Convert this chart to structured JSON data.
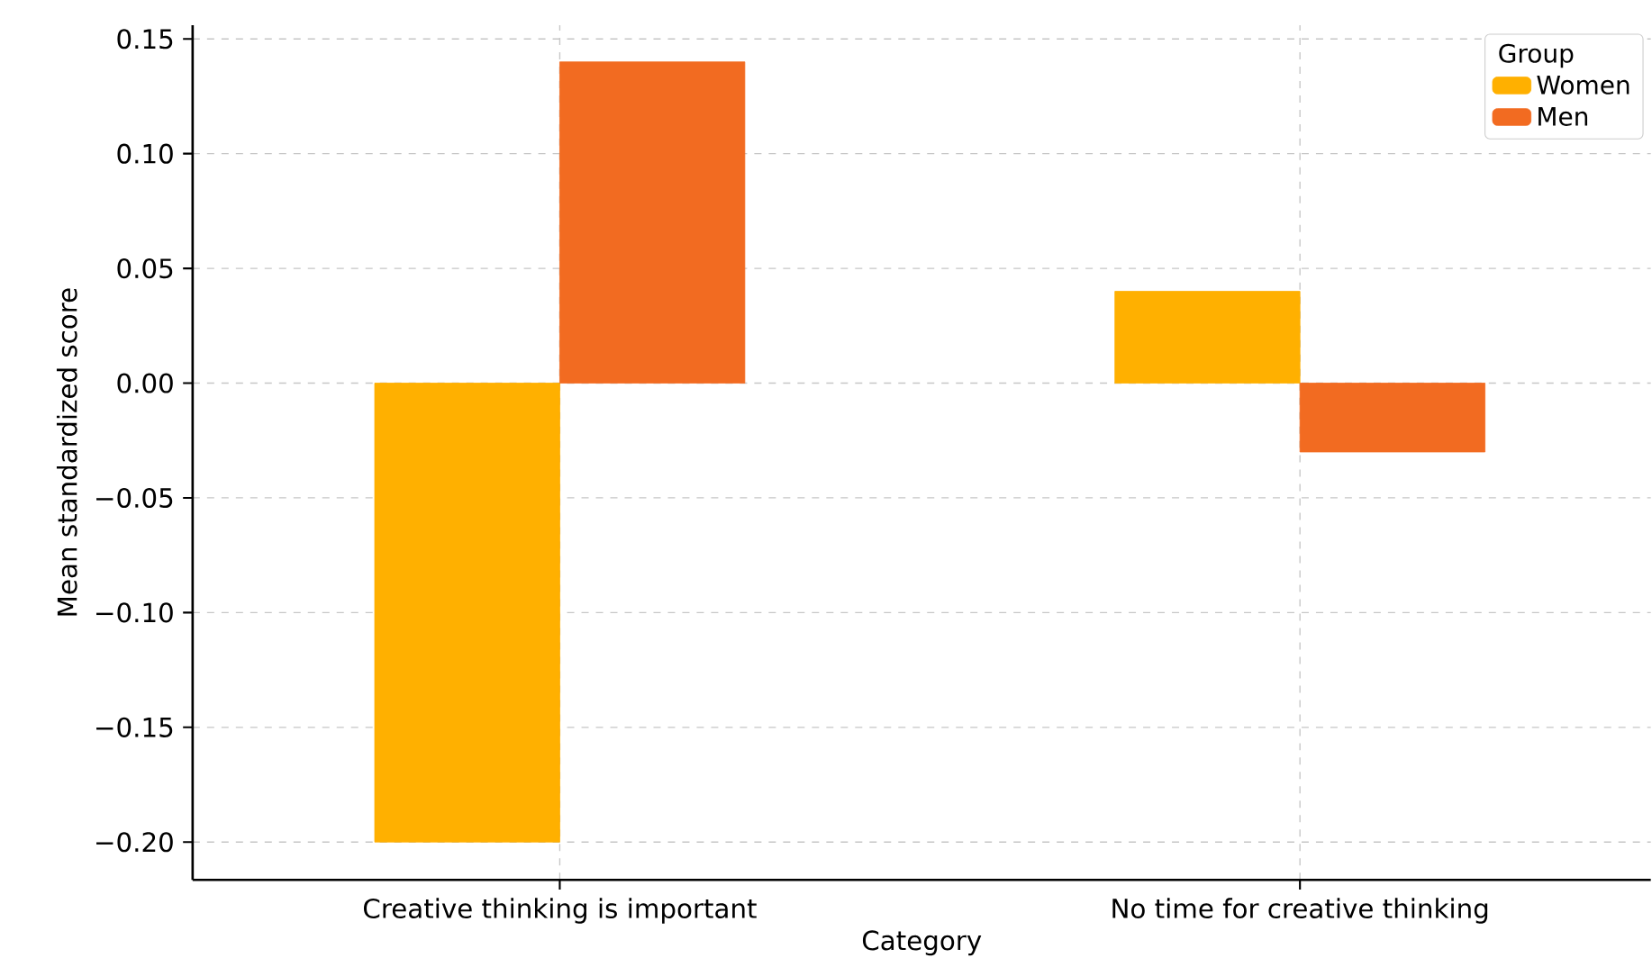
{
  "chart_data": {
    "type": "bar",
    "xlabel": "Category",
    "ylabel": "Mean standardized score",
    "legend_title": "Group",
    "categories": [
      "Creative thinking is important",
      "No time for creative thinking"
    ],
    "series": [
      {
        "name": "Women",
        "color": "#ffb000",
        "values": [
          -0.2,
          0.04
        ]
      },
      {
        "name": "Men",
        "color": "#f26b21",
        "values": [
          0.14,
          -0.03
        ]
      }
    ],
    "ylim": [
      -0.2165,
      0.156
    ],
    "yticks": [
      {
        "value": -0.2,
        "label": "−0.20"
      },
      {
        "value": -0.15,
        "label": "−0.15"
      },
      {
        "value": -0.1,
        "label": "−0.10"
      },
      {
        "value": -0.05,
        "label": "−0.05"
      },
      {
        "value": 0,
        "label": "0.00"
      },
      {
        "value": 0.05,
        "label": "0.05"
      },
      {
        "value": 0.1,
        "label": "0.10"
      },
      {
        "value": 0.15,
        "label": "0.15"
      }
    ],
    "grid": true,
    "legend": "top right"
  }
}
